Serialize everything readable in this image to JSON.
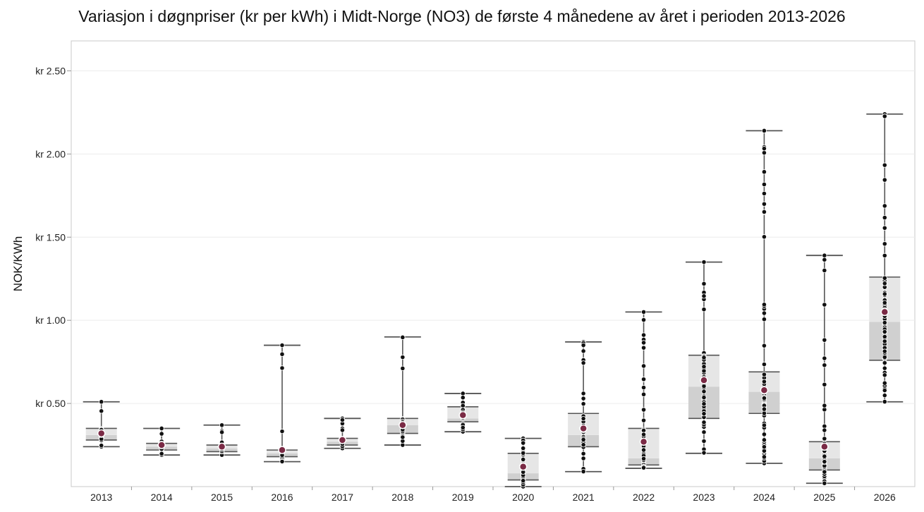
{
  "chart_data": {
    "type": "box",
    "title": "Variasjon i døgnpriser (kr per kWh) i Midt-Norge (NO3) de første 4 månedene av året i perioden 2013-2026",
    "ylabel": "NOK/KWh",
    "xlabel": "",
    "ylim": [
      0,
      2.68
    ],
    "y_ticks": [
      0.5,
      1.0,
      1.5,
      2.0,
      2.5
    ],
    "y_tick_labels": [
      "kr 0.50",
      "kr 1.00",
      "kr 1.50",
      "kr 2.00",
      "kr 2.50"
    ],
    "grid": true,
    "colors": {
      "upper_box": "#e6e6e6",
      "lower_box": "#d0d0d0",
      "median_band": "#c4c4c4",
      "whisker": "#555555",
      "point": "#111111",
      "point_outline": "#ffffff",
      "mean": "#7a2a45",
      "grid": "#ececec",
      "frame": "#c8c8c8"
    },
    "categories": [
      "2013",
      "2014",
      "2015",
      "2016",
      "2017",
      "2018",
      "2019",
      "2020",
      "2021",
      "2022",
      "2023",
      "2024",
      "2025",
      "2026"
    ],
    "boxes": [
      {
        "year": "2013",
        "min": 0.24,
        "q1": 0.28,
        "median": 0.31,
        "q3": 0.35,
        "max": 0.51,
        "mean": 0.32
      },
      {
        "year": "2014",
        "min": 0.19,
        "q1": 0.22,
        "median": 0.24,
        "q3": 0.26,
        "max": 0.35,
        "mean": 0.25
      },
      {
        "year": "2015",
        "min": 0.19,
        "q1": 0.21,
        "median": 0.23,
        "q3": 0.25,
        "max": 0.37,
        "mean": 0.24
      },
      {
        "year": "2016",
        "min": 0.15,
        "q1": 0.18,
        "median": 0.2,
        "q3": 0.22,
        "max": 0.85,
        "mean": 0.22
      },
      {
        "year": "2017",
        "min": 0.23,
        "q1": 0.25,
        "median": 0.27,
        "q3": 0.29,
        "max": 0.41,
        "mean": 0.28
      },
      {
        "year": "2018",
        "min": 0.25,
        "q1": 0.32,
        "median": 0.37,
        "q3": 0.41,
        "max": 0.9,
        "mean": 0.37
      },
      {
        "year": "2019",
        "min": 0.33,
        "q1": 0.39,
        "median": 0.41,
        "q3": 0.48,
        "max": 0.56,
        "mean": 0.43
      },
      {
        "year": "2020",
        "min": 0.0,
        "q1": 0.04,
        "median": 0.08,
        "q3": 0.2,
        "max": 0.29,
        "mean": 0.12
      },
      {
        "year": "2021",
        "min": 0.09,
        "q1": 0.24,
        "median": 0.31,
        "q3": 0.44,
        "max": 0.87,
        "mean": 0.35
      },
      {
        "year": "2022",
        "min": 0.11,
        "q1": 0.13,
        "median": 0.17,
        "q3": 0.35,
        "max": 1.05,
        "mean": 0.27
      },
      {
        "year": "2023",
        "min": 0.2,
        "q1": 0.41,
        "median": 0.6,
        "q3": 0.79,
        "max": 1.35,
        "mean": 0.64
      },
      {
        "year": "2024",
        "min": 0.14,
        "q1": 0.44,
        "median": 0.57,
        "q3": 0.69,
        "max": 2.14,
        "mean": 0.58
      },
      {
        "year": "2025",
        "min": 0.02,
        "q1": 0.1,
        "median": 0.17,
        "q3": 0.27,
        "max": 1.39,
        "mean": 0.24
      },
      {
        "year": "2026",
        "min": 0.51,
        "q1": 0.76,
        "median": 0.99,
        "q3": 1.26,
        "max": 2.24,
        "mean": 1.05
      }
    ]
  }
}
